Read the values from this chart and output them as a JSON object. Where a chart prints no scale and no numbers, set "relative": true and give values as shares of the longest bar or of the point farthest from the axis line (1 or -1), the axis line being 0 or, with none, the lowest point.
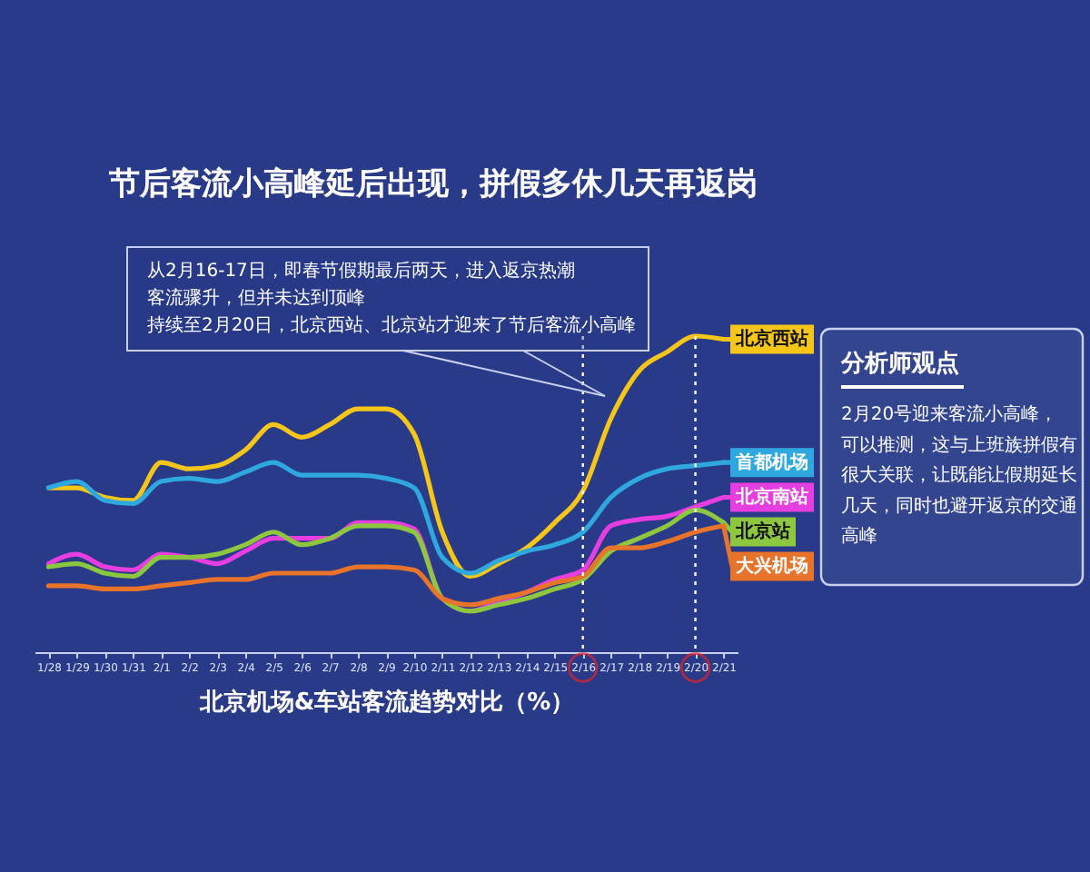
{
  "chart_data": {
    "type": "line",
    "title": "节后客流小高峰延后出现，拼假多休几天再返岗",
    "xlabel": "北京机场&车站客流趋势对比（%）",
    "relative": true,
    "legend": "right",
    "categories": [
      "1/28",
      "1/29",
      "1/30",
      "1/31",
      "2/1",
      "2/2",
      "2/3",
      "2/4",
      "2/5",
      "2/6",
      "2/7",
      "2/8",
      "2/9",
      "2/10",
      "2/11",
      "2/12",
      "2/13",
      "2/14",
      "2/15",
      "2/16",
      "2/17",
      "2/18",
      "2/19",
      "2/20",
      "2/21"
    ],
    "series": [
      {
        "name": "北京西站",
        "color": "#f5c518",
        "values": [
          0.52,
          0.52,
          0.49,
          0.48,
          0.6,
          0.58,
          0.59,
          0.64,
          0.72,
          0.68,
          0.72,
          0.77,
          0.77,
          0.69,
          0.38,
          0.24,
          0.28,
          0.33,
          0.41,
          0.51,
          0.74,
          0.89,
          0.95,
          1.0,
          0.99
        ]
      },
      {
        "name": "首都机场",
        "color": "#2ea8df",
        "values": [
          0.52,
          0.54,
          0.48,
          0.47,
          0.54,
          0.55,
          0.54,
          0.57,
          0.6,
          0.56,
          0.56,
          0.56,
          0.55,
          0.52,
          0.3,
          0.25,
          0.29,
          0.32,
          0.34,
          0.38,
          0.49,
          0.55,
          0.58,
          0.59,
          0.6
        ]
      },
      {
        "name": "北京南站",
        "color": "#e63ee0",
        "values": [
          0.28,
          0.31,
          0.27,
          0.26,
          0.31,
          0.3,
          0.28,
          0.32,
          0.36,
          0.36,
          0.36,
          0.41,
          0.41,
          0.39,
          0.17,
          0.13,
          0.16,
          0.19,
          0.23,
          0.26,
          0.4,
          0.42,
          0.43,
          0.46,
          0.49
        ]
      },
      {
        "name": "北京站",
        "color": "#8dc63f",
        "values": [
          0.27,
          0.28,
          0.25,
          0.24,
          0.3,
          0.3,
          0.31,
          0.34,
          0.38,
          0.34,
          0.36,
          0.4,
          0.4,
          0.38,
          0.17,
          0.13,
          0.15,
          0.17,
          0.2,
          0.23,
          0.32,
          0.36,
          0.4,
          0.45,
          0.41
        ]
      },
      {
        "name": "大兴机场",
        "color": "#e8732a",
        "values": [
          0.21,
          0.21,
          0.2,
          0.2,
          0.21,
          0.22,
          0.23,
          0.23,
          0.25,
          0.25,
          0.25,
          0.27,
          0.27,
          0.26,
          0.17,
          0.15,
          0.17,
          0.19,
          0.22,
          0.24,
          0.33,
          0.33,
          0.35,
          0.38,
          0.4
        ]
      }
    ],
    "ref_lines": [
      {
        "axis": "x",
        "value": "2/16",
        "color": "#ffffff",
        "line_style": "dotted"
      },
      {
        "axis": "x",
        "value": "2/20",
        "color": "#ffffff",
        "line_style": "dotted"
      }
    ],
    "annotations": [
      "从2月16-17日，即春节假期最后两天，进入返京热潮",
      "客流骤升，但并未达到顶峰",
      "持续至2月20日，北京西站、北京站才迎来了节后客流小高峰",
      "分析师观点",
      "2月20号迎来客流小高峰，",
      "可以推测，这与上班族拼假有",
      "很大关联，让既能让假期延长",
      "几天，同时也避开返京的交通",
      "高峰"
    ]
  }
}
